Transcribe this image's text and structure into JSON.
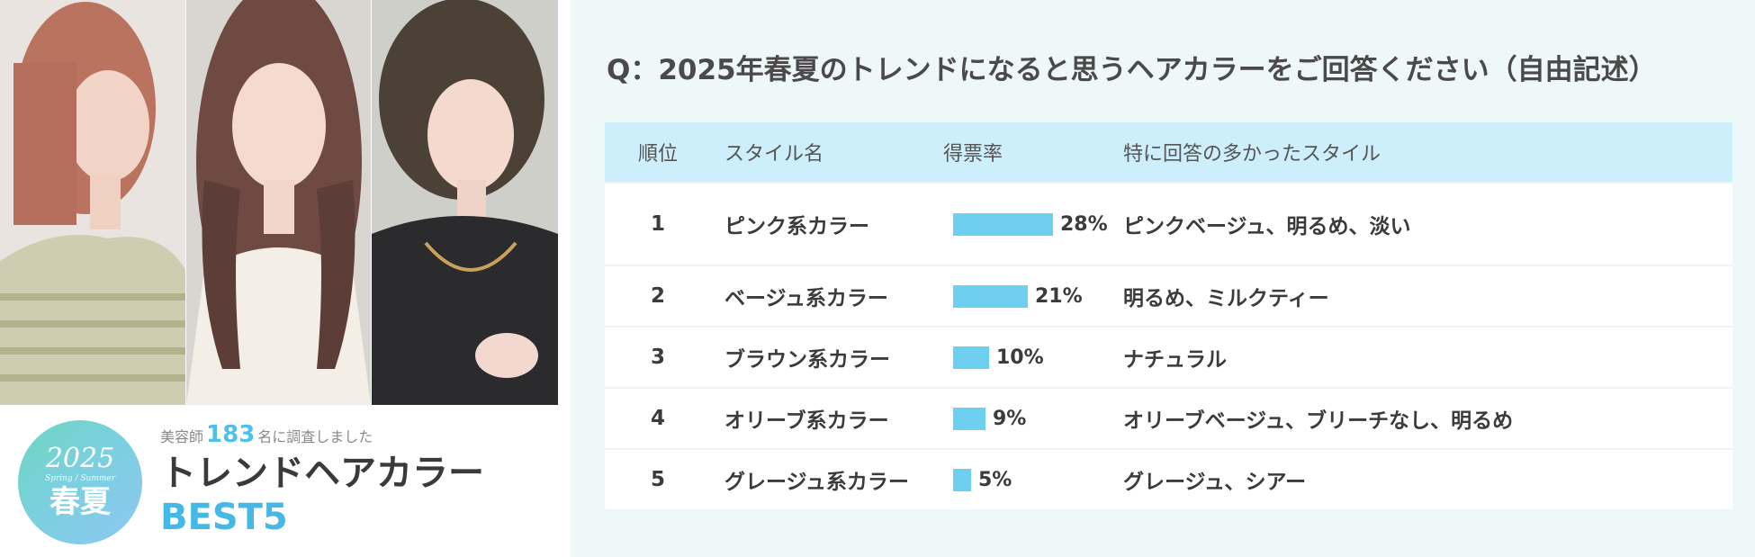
{
  "survey": {
    "year": "2025",
    "subtitle": "Spring / Summer",
    "season": "春夏",
    "count_prefix": "美容師",
    "count": "183",
    "count_suffix": "名に調査しました",
    "title": "トレンドヘアカラー",
    "best": "BEST5"
  },
  "question": "Q：2025年春夏のトレンドになると思うヘアカラーをご回答ください（自由記述）",
  "table": {
    "headers": [
      "順位",
      "スタイル名",
      "得票率",
      "特に回答の多かったスタイル"
    ],
    "rows": [
      {
        "rank": "1",
        "style": "ピンク系カラー",
        "rate": 28,
        "rate_label": "28%",
        "detail": "ピンクベージュ、明るめ、淡い"
      },
      {
        "rank": "2",
        "style": "ベージュ系カラー",
        "rate": 21,
        "rate_label": "21%",
        "detail": "明るめ、ミルクティー"
      },
      {
        "rank": "3",
        "style": "ブラウン系カラー",
        "rate": 10,
        "rate_label": "10%",
        "detail": "ナチュラル"
      },
      {
        "rank": "4",
        "style": "オリーブ系カラー",
        "rate": 9,
        "rate_label": "9%",
        "detail": "オリーブベージュ、ブリーチなし、明るめ"
      },
      {
        "rank": "5",
        "style": "グレージュ系カラー",
        "rate": 5,
        "rate_label": "5%",
        "detail": "グレージュ、シアー"
      }
    ]
  },
  "colors": {
    "accent": "#4fc1e8",
    "bar": "#6fcff0",
    "header_bg": "#cdeefb",
    "panel_bg": "#eef8f8"
  },
  "images": [
    "model-photo-pink-bob",
    "model-photo-long-brown",
    "model-photo-short-bob"
  ]
}
